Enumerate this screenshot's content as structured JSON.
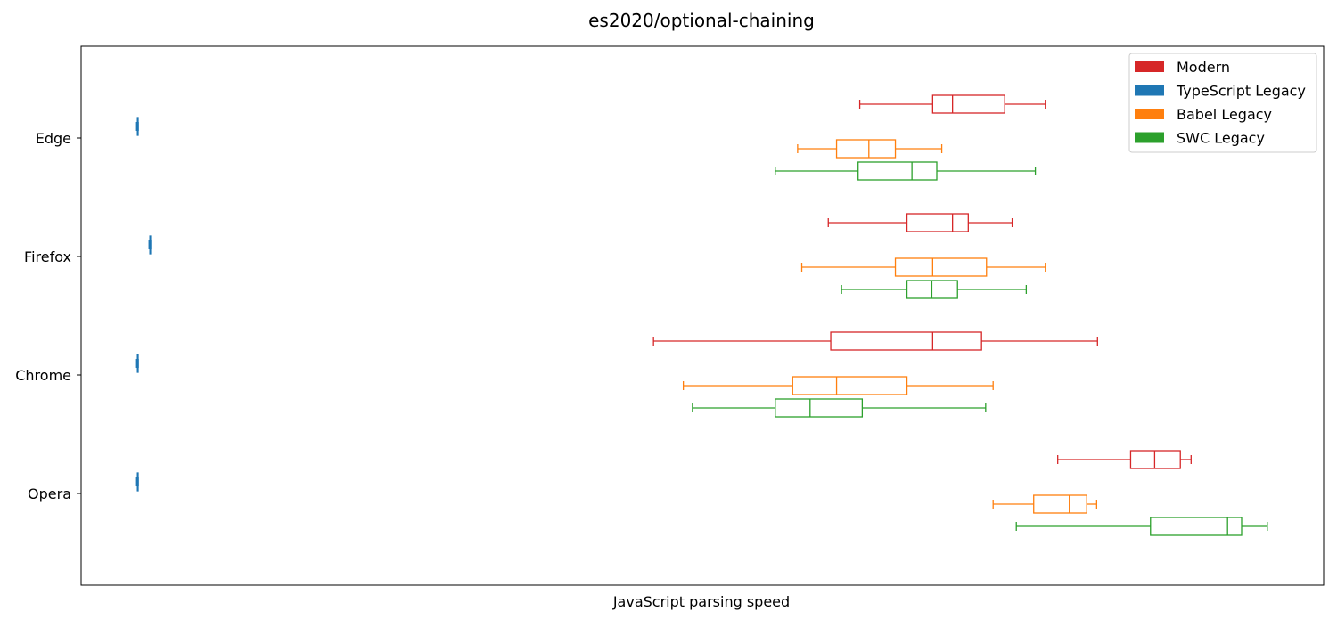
{
  "chart_data": {
    "type": "boxplot",
    "orientation": "horizontal",
    "title": "es2020/optional-chaining",
    "xlabel": "JavaScript parsing speed",
    "ylabel": "",
    "x_ticks_shown": false,
    "xlim": [
      0,
      1500
    ],
    "categories": [
      "Edge",
      "Firefox",
      "Chrome",
      "Opera"
    ],
    "legend": {
      "position": "top-right"
    },
    "series": [
      {
        "name": "Modern",
        "color": "#d62728",
        "boxes": [
          {
            "category": "Edge",
            "whislo": 940,
            "q1": 1028,
            "med": 1052,
            "q3": 1115,
            "whishi": 1164
          },
          {
            "category": "Firefox",
            "whislo": 902,
            "q1": 997,
            "med": 1052,
            "q3": 1071,
            "whishi": 1124
          },
          {
            "category": "Chrome",
            "whislo": 691,
            "q1": 905,
            "med": 1028,
            "q3": 1087,
            "whishi": 1227
          },
          {
            "category": "Opera",
            "whislo": 1179,
            "q1": 1267,
            "med": 1296,
            "q3": 1327,
            "whishi": 1340
          }
        ]
      },
      {
        "name": "TypeScript Legacy",
        "color": "#1f77b4",
        "boxes": [
          {
            "category": "Edge",
            "whislo": 67,
            "q1": 68,
            "med": 68,
            "q3": 68,
            "whishi": 69
          },
          {
            "category": "Firefox",
            "whislo": 82,
            "q1": 83,
            "med": 83,
            "q3": 83,
            "whishi": 84
          },
          {
            "category": "Chrome",
            "whislo": 67,
            "q1": 68,
            "med": 68,
            "q3": 68,
            "whishi": 69
          },
          {
            "category": "Opera",
            "whislo": 67,
            "q1": 68,
            "med": 68,
            "q3": 68,
            "whishi": 69
          }
        ]
      },
      {
        "name": "Babel Legacy",
        "color": "#ff7f0e",
        "boxes": [
          {
            "category": "Edge",
            "whislo": 865,
            "q1": 912,
            "med": 951,
            "q3": 983,
            "whishi": 1039
          },
          {
            "category": "Firefox",
            "whislo": 870,
            "q1": 983,
            "med": 1028,
            "q3": 1093,
            "whishi": 1164
          },
          {
            "category": "Chrome",
            "whislo": 727,
            "q1": 859,
            "med": 912,
            "q3": 997,
            "whishi": 1101
          },
          {
            "category": "Opera",
            "whislo": 1101,
            "q1": 1150,
            "med": 1193,
            "q3": 1214,
            "whishi": 1226
          }
        ]
      },
      {
        "name": "SWC Legacy",
        "color": "#2ca02c",
        "boxes": [
          {
            "category": "Edge",
            "whislo": 838,
            "q1": 938,
            "med": 1003,
            "q3": 1033,
            "whishi": 1152
          },
          {
            "category": "Firefox",
            "whislo": 918,
            "q1": 997,
            "med": 1027,
            "q3": 1058,
            "whishi": 1141
          },
          {
            "category": "Chrome",
            "whislo": 738,
            "q1": 838,
            "med": 880,
            "q3": 943,
            "whishi": 1092
          },
          {
            "category": "Opera",
            "whislo": 1129,
            "q1": 1291,
            "med": 1384,
            "q3": 1401,
            "whishi": 1432
          }
        ]
      }
    ]
  }
}
